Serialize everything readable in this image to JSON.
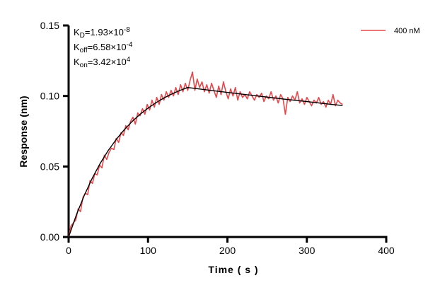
{
  "chart_data": {
    "type": "line",
    "xlabel": "Time ( s )",
    "ylabel": "Response (nm)",
    "xlim": [
      0,
      400
    ],
    "ylim": [
      0,
      0.15
    ],
    "xticks": [
      "0",
      "100",
      "200",
      "300",
      "400"
    ],
    "yticks": [
      "0.00",
      "0.05",
      "0.10",
      "0.15"
    ],
    "grid": false,
    "legend_position": "top-right",
    "annotations": {
      "kd": {
        "label": "K",
        "sub": "D",
        "value": "=1.93×10",
        "exp": "-8"
      },
      "koff": {
        "label": "K",
        "sub": "off",
        "value": "=6.58×10",
        "exp": "-4"
      },
      "kon": {
        "label": "K",
        "sub": "on",
        "value": "=3.42×10",
        "exp": "4"
      }
    },
    "series": [
      {
        "name": "400 nM",
        "color": "#e8474b",
        "x": [
          0,
          3,
          6,
          9,
          12,
          15,
          18,
          21,
          24,
          27,
          30,
          33,
          36,
          39,
          42,
          45,
          48,
          51,
          54,
          57,
          60,
          63,
          66,
          69,
          72,
          75,
          78,
          81,
          84,
          87,
          90,
          93,
          96,
          99,
          102,
          105,
          108,
          111,
          114,
          117,
          120,
          123,
          126,
          129,
          132,
          135,
          138,
          141,
          144,
          147,
          150,
          153,
          156,
          159,
          162,
          165,
          168,
          171,
          174,
          177,
          180,
          183,
          186,
          189,
          192,
          195,
          198,
          201,
          204,
          207,
          210,
          213,
          216,
          219,
          222,
          225,
          228,
          231,
          234,
          237,
          240,
          243,
          246,
          249,
          252,
          255,
          258,
          261,
          264,
          267,
          270,
          273,
          276,
          279,
          282,
          285,
          288,
          291,
          294,
          297,
          300,
          303,
          306,
          309,
          312,
          315,
          318,
          321,
          324,
          327,
          330,
          333,
          336,
          339,
          342,
          345
        ],
        "y": [
          0.0,
          0.008,
          0.01,
          0.012,
          0.02,
          0.018,
          0.028,
          0.031,
          0.03,
          0.04,
          0.038,
          0.045,
          0.044,
          0.051,
          0.049,
          0.058,
          0.055,
          0.06,
          0.063,
          0.062,
          0.07,
          0.067,
          0.074,
          0.072,
          0.079,
          0.076,
          0.082,
          0.085,
          0.08,
          0.088,
          0.086,
          0.091,
          0.087,
          0.094,
          0.09,
          0.097,
          0.092,
          0.099,
          0.094,
          0.101,
          0.097,
          0.103,
          0.099,
          0.104,
          0.1,
          0.106,
          0.101,
          0.108,
          0.103,
          0.109,
          0.104,
          0.111,
          0.117,
          0.104,
          0.112,
          0.106,
          0.11,
          0.103,
          0.108,
          0.102,
          0.109,
          0.104,
          0.099,
          0.107,
          0.101,
          0.11,
          0.103,
          0.098,
          0.105,
          0.1,
          0.106,
          0.097,
          0.103,
          0.099,
          0.101,
          0.098,
          0.103,
          0.1,
          0.097,
          0.101,
          0.099,
          0.102,
          0.096,
          0.1,
          0.098,
          0.103,
          0.097,
          0.1,
          0.095,
          0.101,
          0.098,
          0.087,
          0.099,
          0.096,
          0.1,
          0.097,
          0.103,
          0.095,
          0.098,
          0.094,
          0.099,
          0.096,
          0.093,
          0.097,
          0.095,
          0.099,
          0.094,
          0.096,
          0.092,
          0.097,
          0.094,
          0.101,
          0.093,
          0.097,
          0.095,
          0.094
        ]
      },
      {
        "color": "#000000",
        "x": [
          0,
          10,
          20,
          30,
          40,
          50,
          60,
          70,
          80,
          90,
          100,
          110,
          120,
          130,
          140,
          150,
          180,
          210,
          240,
          270,
          300,
          330,
          345
        ],
        "y": [
          0,
          0.016,
          0.0299,
          0.042,
          0.0524,
          0.0614,
          0.0692,
          0.076,
          0.0819,
          0.087,
          0.0914,
          0.0952,
          0.0986,
          0.1014,
          0.1039,
          0.106,
          0.1039,
          0.1019,
          0.0999,
          0.0979,
          0.096,
          0.0941,
          0.0932
        ]
      }
    ]
  }
}
